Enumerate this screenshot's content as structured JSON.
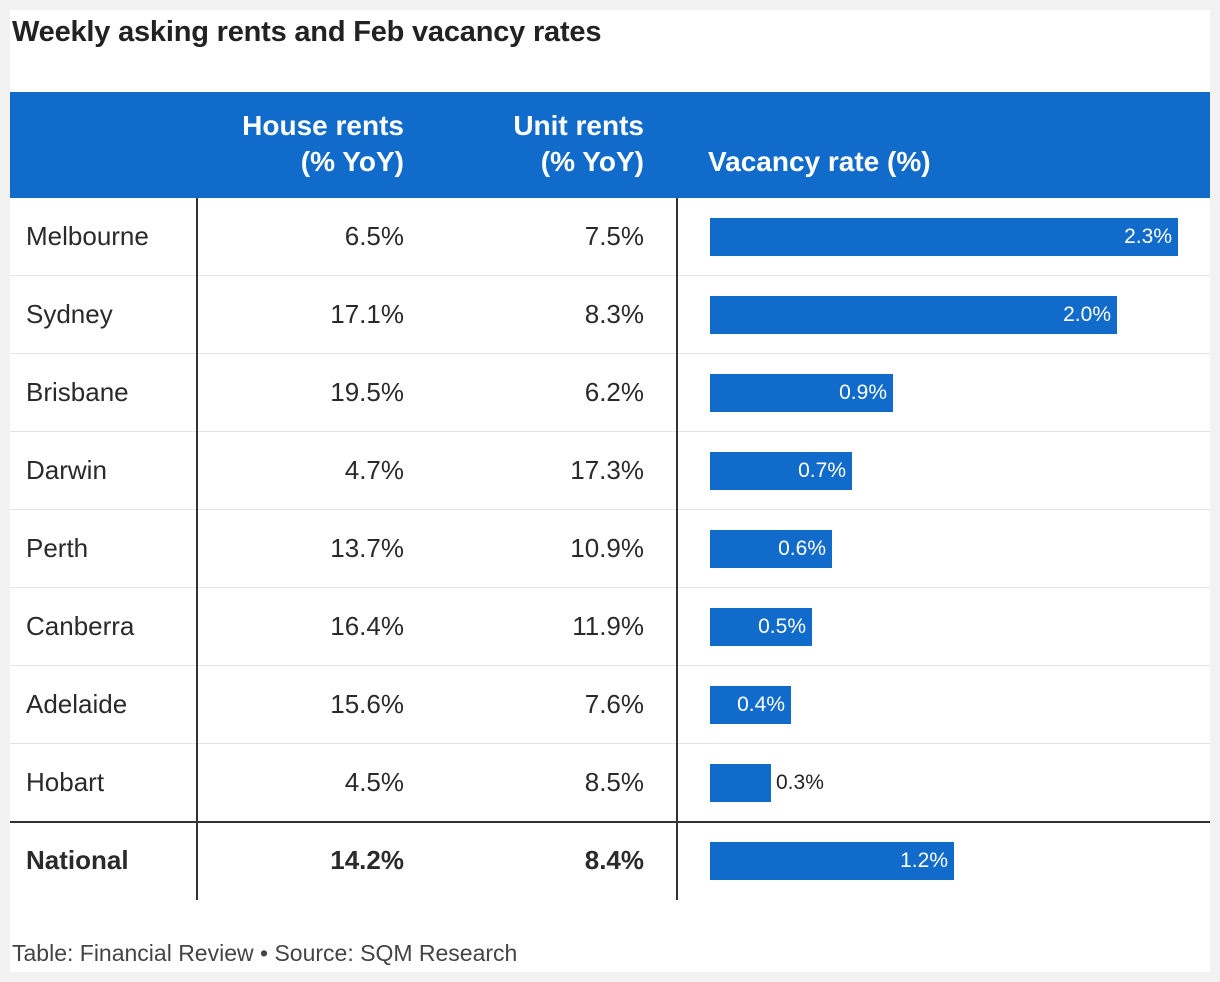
{
  "title": "Weekly asking rents and Feb vacancy rates",
  "columns": {
    "house_line1": "House rents",
    "house_line2": "(% YoY)",
    "unit_line1": "Unit rents",
    "unit_line2": "(% YoY)",
    "vacancy": "Vacancy rate (%)"
  },
  "footer": "Table: Financial Review • Source: SQM Research",
  "colors": {
    "header_bg": "#116bcb",
    "bar": "#116bcb"
  },
  "chart_data": {
    "type": "table",
    "title": "Weekly asking rents and Feb vacancy rates",
    "columns": [
      "",
      "House rents (% YoY)",
      "Unit rents (% YoY)",
      "Vacancy rate (%)"
    ],
    "rows": [
      {
        "city": "Melbourne",
        "house": "6.5%",
        "unit": "7.5%",
        "vacancy": 2.3,
        "vacancy_label": "2.3%"
      },
      {
        "city": "Sydney",
        "house": "17.1%",
        "unit": "8.3%",
        "vacancy": 2.0,
        "vacancy_label": "2.0%"
      },
      {
        "city": "Brisbane",
        "house": "19.5%",
        "unit": "6.2%",
        "vacancy": 0.9,
        "vacancy_label": "0.9%"
      },
      {
        "city": "Darwin",
        "house": "4.7%",
        "unit": "17.3%",
        "vacancy": 0.7,
        "vacancy_label": "0.7%"
      },
      {
        "city": "Perth",
        "house": "13.7%",
        "unit": "10.9%",
        "vacancy": 0.6,
        "vacancy_label": "0.6%"
      },
      {
        "city": "Canberra",
        "house": "16.4%",
        "unit": "11.9%",
        "vacancy": 0.5,
        "vacancy_label": "0.5%"
      },
      {
        "city": "Adelaide",
        "house": "15.6%",
        "unit": "7.6%",
        "vacancy": 0.4,
        "vacancy_label": "0.4%"
      },
      {
        "city": "Hobart",
        "house": "4.5%",
        "unit": "8.5%",
        "vacancy": 0.3,
        "vacancy_label": "0.3%"
      },
      {
        "city": "National",
        "house": "14.2%",
        "unit": "8.4%",
        "vacancy": 1.2,
        "vacancy_label": "1.2%",
        "total": true
      }
    ],
    "vacancy_max": 2.3
  }
}
